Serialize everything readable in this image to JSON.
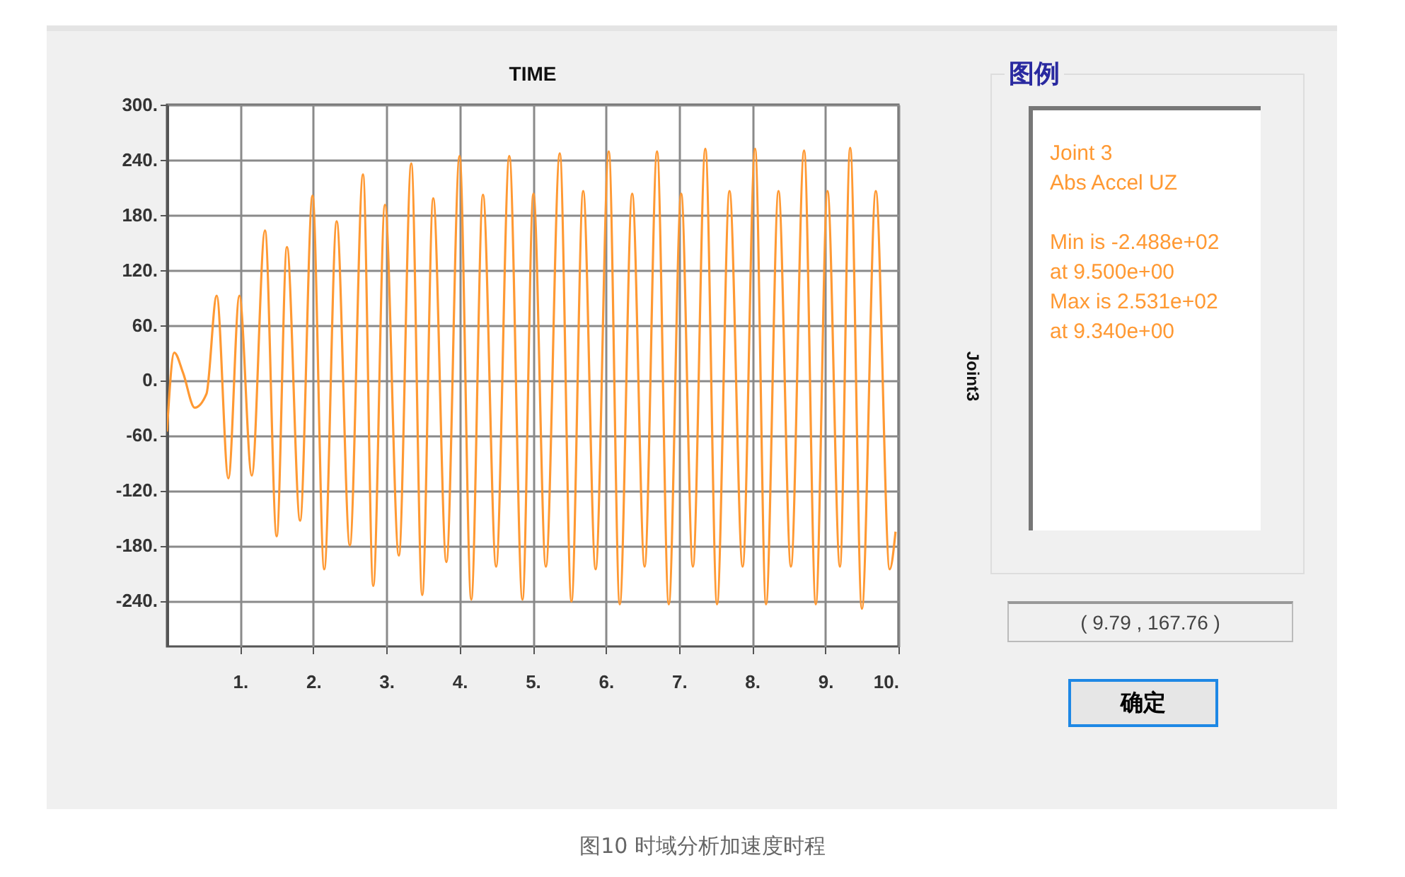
{
  "chart_data": {
    "type": "line",
    "title": "TIME",
    "ylabel": "Joint3",
    "legend_title": "图例",
    "legend": "right",
    "grid": true,
    "xlim": [
      0,
      10
    ],
    "ylim": [
      -290,
      300
    ],
    "xticks": [
      {
        "value": 1,
        "label": "1."
      },
      {
        "value": 2,
        "label": "2."
      },
      {
        "value": 3,
        "label": "3."
      },
      {
        "value": 4,
        "label": "4."
      },
      {
        "value": 5,
        "label": "5."
      },
      {
        "value": 6,
        "label": "6."
      },
      {
        "value": 7,
        "label": "7."
      },
      {
        "value": 8,
        "label": "8."
      },
      {
        "value": 9,
        "label": "9."
      },
      {
        "value": 10,
        "label": "10."
      }
    ],
    "yticks": [
      {
        "value": -240,
        "label": "-240."
      },
      {
        "value": -180,
        "label": "-180."
      },
      {
        "value": -120,
        "label": "-120."
      },
      {
        "value": -60,
        "label": "-60."
      },
      {
        "value": 0,
        "label": "0."
      },
      {
        "value": 60,
        "label": "60."
      },
      {
        "value": 120,
        "label": "120."
      },
      {
        "value": 180,
        "label": "180."
      },
      {
        "value": 240,
        "label": "240."
      },
      {
        "value": 300,
        "label": "300."
      }
    ],
    "series": [
      {
        "name": "Joint 3",
        "color": "#ff9933",
        "x": [
          0,
          0.1,
          0.22,
          0.38,
          0.54,
          0.68,
          0.84,
          0.99,
          1.16,
          1.34,
          1.5,
          1.64,
          1.82,
          1.99,
          2.15,
          2.32,
          2.5,
          2.68,
          2.82,
          2.98,
          3.17,
          3.34,
          3.49,
          3.64,
          3.82,
          4.0,
          4.16,
          4.32,
          4.5,
          4.68,
          4.86,
          5.01,
          5.18,
          5.37,
          5.53,
          5.69,
          5.86,
          6.04,
          6.19,
          6.36,
          6.53,
          6.7,
          6.86,
          7.03,
          7.19,
          7.36,
          7.52,
          7.69,
          7.87,
          8.04,
          8.19,
          8.36,
          8.53,
          8.71,
          8.87,
          9.03,
          9.2,
          9.34,
          9.5,
          9.69,
          9.88,
          9.96
        ],
        "values": [
          -56,
          30,
          8,
          -30,
          -15,
          92,
          -107,
          92,
          -104,
          163,
          -170,
          145,
          -153,
          201,
          -206,
          173,
          -180,
          224,
          -224,
          191,
          -191,
          236,
          -234,
          198,
          -198,
          244,
          -239,
          202,
          -203,
          244,
          -239,
          203,
          -203,
          247,
          -241,
          206,
          -206,
          249,
          -244,
          203,
          -203,
          249,
          -244,
          203,
          -203,
          252,
          -244,
          206,
          -203,
          252,
          -244,
          206,
          -203,
          250,
          -244,
          206,
          -203,
          253,
          -249,
          206,
          -206,
          -165
        ]
      }
    ],
    "annotations": [
      "Abs Accel  UZ",
      "Min is -2.488e+02",
      "at 9.500e+00",
      "Max is 2.531e+02",
      "at 9.340e+00",
      "( 9.79 , 167.76 )",
      "确定",
      "图10 时域分析加速度时程"
    ]
  }
}
